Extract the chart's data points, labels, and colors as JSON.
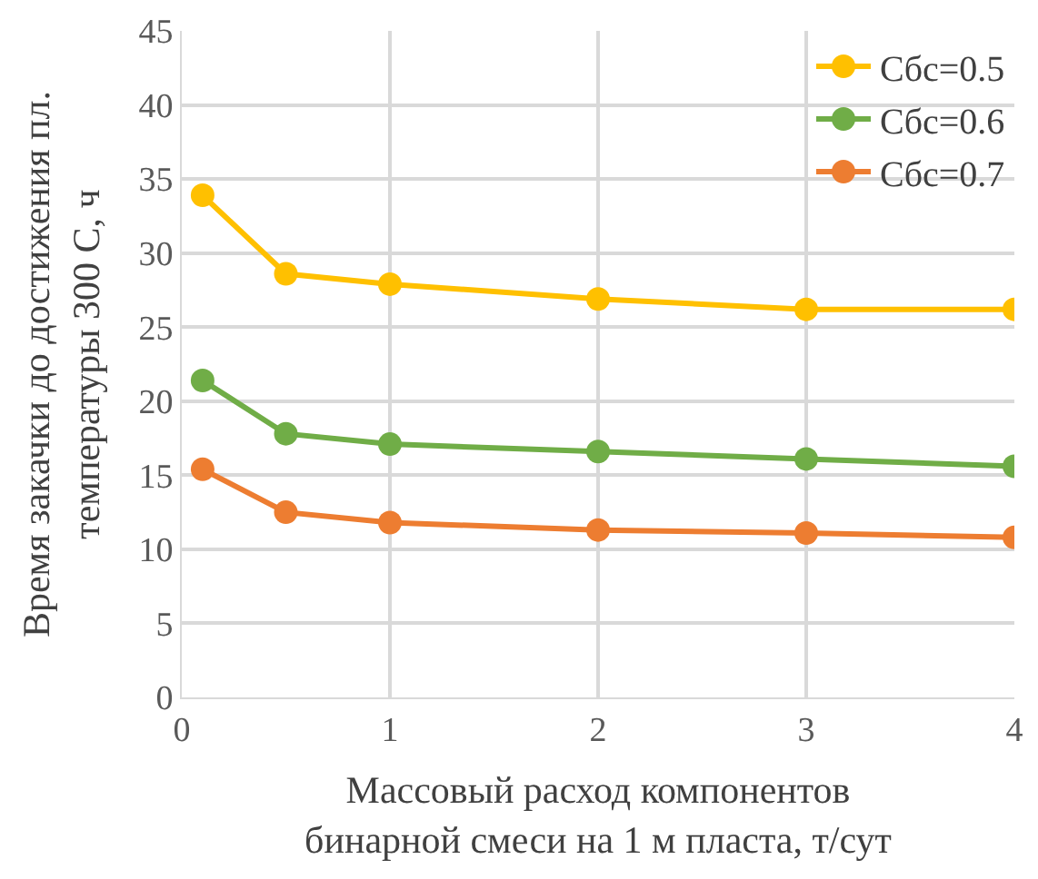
{
  "chart_data": {
    "type": "line",
    "xlabel": "Массовый расход компонентов\nбинарной смеси на 1 м пласта, т/сут",
    "ylabel": "Время закачки до достижения пл.\nтемпературы 300 С, ч",
    "x": [
      0.1,
      0.5,
      1,
      2,
      3,
      4
    ],
    "series": [
      {
        "name": "Cбс=0.5",
        "color": "#ffc000",
        "values": [
          33.9,
          28.6,
          27.9,
          26.9,
          26.2,
          26.2
        ]
      },
      {
        "name": "Cбс=0.6",
        "color": "#70ad47",
        "values": [
          21.4,
          17.8,
          17.1,
          16.6,
          16.1,
          15.6
        ]
      },
      {
        "name": "Cбс=0.7",
        "color": "#ed7d31",
        "values": [
          15.4,
          12.5,
          11.8,
          11.3,
          11.1,
          10.8
        ]
      }
    ],
    "xlim": [
      0,
      4
    ],
    "xticks": [
      0,
      1,
      2,
      3,
      4
    ],
    "ylim": [
      0,
      45
    ],
    "yticks": [
      0,
      5,
      10,
      15,
      20,
      25,
      30,
      35,
      40,
      45
    ],
    "grid": true,
    "legend": "top right",
    "marker": "circle",
    "line_style": "solid"
  }
}
